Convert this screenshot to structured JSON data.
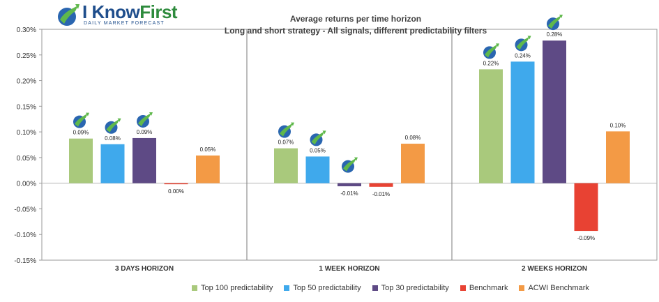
{
  "logo": {
    "brand": "I Know",
    "brand_accent": "First",
    "tagline": "Daily Market Forecast"
  },
  "chart_data": {
    "type": "bar",
    "title": "Average returns per time horizon",
    "subtitle": "Long and short strategy - All signals, different predictability filters",
    "categories": [
      "3 DAYS HORIZON",
      "1 WEEK HORIZON",
      "2 WEEKS HORIZON"
    ],
    "series": [
      {
        "name": "Top 100 predictability",
        "color": "#a9c97c",
        "values": [
          0.087,
          0.068,
          0.222
        ],
        "labels": [
          "0.09%",
          "0.07%",
          "0.22%"
        ]
      },
      {
        "name": "Top 50 predictability",
        "color": "#3fa9ec",
        "values": [
          0.076,
          0.052,
          0.237
        ],
        "labels": [
          "0.08%",
          "0.05%",
          "0.24%"
        ]
      },
      {
        "name": "Top 30 predictability",
        "color": "#5e4a85",
        "values": [
          0.088,
          -0.006,
          0.278
        ],
        "labels": [
          "0.09%",
          "-0.01%",
          "0.28%"
        ]
      },
      {
        "name": "Benchmark",
        "color": "#e84233",
        "values": [
          -0.002,
          -0.007,
          -0.093
        ],
        "labels": [
          "0.00%",
          "-0.01%",
          "-0.09%"
        ]
      },
      {
        "name": "ACWI Benchmark",
        "color": "#f39a45",
        "values": [
          0.054,
          0.077,
          0.101
        ],
        "labels": [
          "0.05%",
          "0.08%",
          "0.10%"
        ]
      }
    ],
    "logo_marks": [
      [
        true,
        true,
        true,
        false,
        false
      ],
      [
        true,
        true,
        true,
        false,
        false
      ],
      [
        true,
        true,
        true,
        false,
        false
      ]
    ],
    "ylim": [
      -0.15,
      0.3
    ],
    "yticks": [
      "-0.15%",
      "-0.10%",
      "-0.05%",
      "0.00%",
      "0.05%",
      "0.10%",
      "0.15%",
      "0.20%",
      "0.25%",
      "0.30%"
    ],
    "ytick_values": [
      -0.15,
      -0.1,
      -0.05,
      0.0,
      0.05,
      0.1,
      0.15,
      0.2,
      0.25,
      0.3
    ],
    "legend_position": "bottom",
    "grid": false
  }
}
